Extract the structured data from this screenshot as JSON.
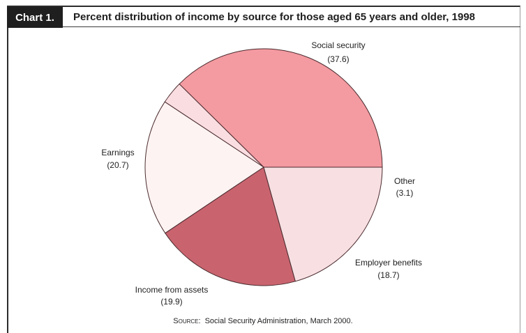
{
  "chart_label": "Chart 1.",
  "chart_data": {
    "type": "pie",
    "title": "Percent distribution of income by source for those aged 65 years and older, 1998",
    "slices": [
      {
        "label": "Social security",
        "value_label": "(37.6)",
        "value": 37.6,
        "color": "#f49aa1"
      },
      {
        "label": "Other",
        "value_label": "(3.1)",
        "value": 3.1,
        "color": "#f9dde0"
      },
      {
        "label": "Employer benefits",
        "value_label": "(18.7)",
        "value": 18.7,
        "color": "#fdf3f2"
      },
      {
        "label": "Income from assets",
        "value_label": "(19.9)",
        "value": 19.9,
        "color": "#c9646f"
      },
      {
        "label": "Earnings",
        "value_label": "(20.7)",
        "value": 20.7,
        "color": "#f7dfe2"
      }
    ]
  },
  "source": {
    "prefix": "Source:",
    "text": "Social Security Administration, March 2000."
  }
}
